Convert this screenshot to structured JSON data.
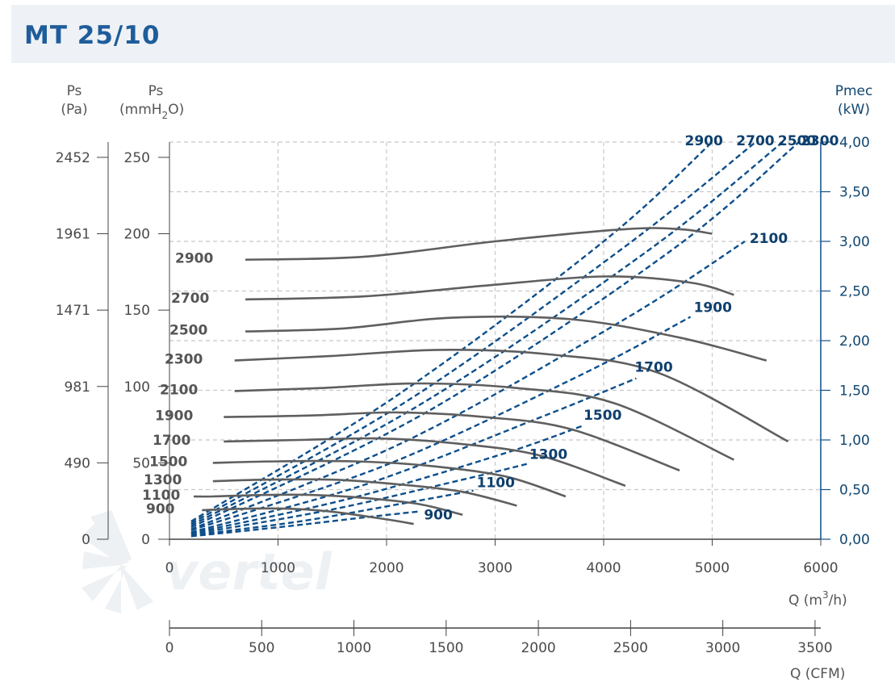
{
  "title": "MT 25/10",
  "axes": {
    "ps_pa": "Ps",
    "ps_pa_unit": "(Pa)",
    "ps_mm": "Ps",
    "ps_mm_unit_a": "(mmH",
    "ps_mm_unit_sub": "2",
    "ps_mm_unit_b": "O)",
    "pmec": "Pmec",
    "pmec_unit": "(kW)",
    "q_m3h_a": "Q (m",
    "q_m3h_sup": "3",
    "q_m3h_b": "/h)",
    "q_cfm": "Q (CFM)"
  },
  "watermark": "vertel",
  "chart_data": {
    "type": "line",
    "title": "MT 25/10",
    "xlabel": "Q (m3/h)",
    "xlim": [
      0,
      6000
    ],
    "x_ticks": [
      "0",
      "1000",
      "2000",
      "3000",
      "4000",
      "5000",
      "6000"
    ],
    "x2label": "Q (CFM)",
    "x2lim": [
      0,
      3531
    ],
    "x2_ticks": [
      "0",
      "500",
      "1000",
      "1500",
      "2000",
      "2500",
      "3000",
      "3500"
    ],
    "ylabel": "Ps (mmH2O)",
    "ylim": [
      0,
      260
    ],
    "y_ticks_mm": [
      "0",
      "50",
      "100",
      "150",
      "200",
      "250"
    ],
    "y_ticks_pa": [
      "0",
      "490",
      "981",
      "1471",
      "1961",
      "2452"
    ],
    "y2label": "Pmec (kW)",
    "y2lim": [
      0,
      4.0
    ],
    "y2_ticks": [
      "0,00",
      "0,50",
      "1,00",
      "1,50",
      "2,00",
      "2,50",
      "3,00",
      "3,50",
      "4,00"
    ],
    "grid": true,
    "pressure_series": [
      {
        "name": "900",
        "x": [
          0,
          300,
          700,
          1100,
          1500,
          2000,
          2250
        ],
        "y": [
          19,
          19,
          20,
          20,
          18,
          13,
          10
        ]
      },
      {
        "name": "1100",
        "x": [
          0,
          400,
          900,
          1300,
          1800,
          2300,
          2700
        ],
        "y": [
          28,
          28,
          29,
          29,
          27,
          23,
          16
        ]
      },
      {
        "name": "1300",
        "x": [
          -200,
          400,
          900,
          1500,
          2100,
          2700,
          3200
        ],
        "y": [
          38,
          38,
          39,
          39,
          36,
          31,
          22
        ]
      },
      {
        "name": "1500",
        "x": [
          -300,
          400,
          1000,
          1700,
          2400,
          3100,
          3650
        ],
        "y": [
          50,
          50,
          51,
          51,
          48,
          41,
          28
        ]
      },
      {
        "name": "1700",
        "x": [
          -300,
          500,
          1200,
          1900,
          2600,
          3400,
          4200
        ],
        "y": [
          65,
          64,
          65,
          66,
          63,
          55,
          35
        ]
      },
      {
        "name": "1900",
        "x": [
          -300,
          500,
          1300,
          2100,
          2900,
          3700,
          4700
        ],
        "y": [
          81,
          80,
          81,
          83,
          80,
          72,
          45
        ]
      },
      {
        "name": "2100",
        "x": [
          -300,
          600,
          1400,
          2300,
          3200,
          4100,
          5200
        ],
        "y": [
          100,
          97,
          99,
          102,
          99,
          89,
          52
        ]
      },
      {
        "name": "2300",
        "x": [
          -300,
          600,
          1500,
          2500,
          3500,
          4500,
          5700
        ],
        "y": [
          121,
          117,
          120,
          124,
          121,
          109,
          64
        ]
      },
      {
        "name": "2500",
        "x": [
          -200,
          700,
          1600,
          2600,
          3700,
          4700,
          5500
        ],
        "y": [
          141,
          136,
          138,
          145,
          144,
          132,
          117
        ]
      },
      {
        "name": "2700",
        "x": [
          -300,
          700,
          1800,
          2900,
          4000,
          4800,
          5200
        ],
        "y": [
          164,
          157,
          159,
          166,
          172,
          168,
          160
        ]
      },
      {
        "name": "2900",
        "x": [
          -200,
          700,
          1800,
          3000,
          4200,
          4700,
          5000
        ],
        "y": [
          190,
          183,
          185,
          195,
          203,
          203,
          200
        ]
      }
    ],
    "power_series": [
      {
        "name": "900",
        "x": [
          200,
          1000,
          1800,
          2300
        ],
        "y": [
          0.03,
          0.12,
          0.22,
          0.28
        ]
      },
      {
        "name": "1100",
        "x": [
          200,
          1200,
          2200,
          2800
        ],
        "y": [
          0.04,
          0.18,
          0.37,
          0.49
        ]
      },
      {
        "name": "1300",
        "x": [
          200,
          1500,
          2700,
          3300
        ],
        "y": [
          0.05,
          0.3,
          0.6,
          0.76
        ]
      },
      {
        "name": "1500",
        "x": [
          200,
          1700,
          3100,
          3800
        ],
        "y": [
          0.06,
          0.42,
          0.87,
          1.14
        ]
      },
      {
        "name": "1700",
        "x": [
          200,
          1800,
          3400,
          4300
        ],
        "y": [
          0.07,
          0.55,
          1.22,
          1.62
        ]
      },
      {
        "name": "1900",
        "x": [
          200,
          2000,
          3800,
          4800
        ],
        "y": [
          0.09,
          0.75,
          1.66,
          2.24
        ]
      },
      {
        "name": "2100",
        "x": [
          200,
          2200,
          4200,
          5300
        ],
        "y": [
          0.1,
          1.0,
          2.22,
          3.0
        ]
      },
      {
        "name": "2300",
        "x": [
          200,
          2400,
          4600,
          5800
        ],
        "y": [
          0.12,
          1.3,
          2.89,
          4.0
        ]
      },
      {
        "name": "2500",
        "x": [
          200,
          2300,
          4400,
          5650
        ],
        "y": [
          0.14,
          1.35,
          2.9,
          4.0
        ]
      },
      {
        "name": "2700",
        "x": [
          200,
          2200,
          4200,
          5400
        ],
        "y": [
          0.16,
          1.4,
          2.95,
          4.0
        ]
      },
      {
        "name": "2900",
        "x": [
          200,
          2100,
          4000,
          5000
        ],
        "y": [
          0.18,
          1.45,
          3.0,
          4.0
        ]
      }
    ],
    "colors": {
      "pressure": "#5f5f5f",
      "power": "#0d4f8b",
      "grid": "#c8c8c8",
      "right_axis": "#0d4f8b"
    }
  }
}
